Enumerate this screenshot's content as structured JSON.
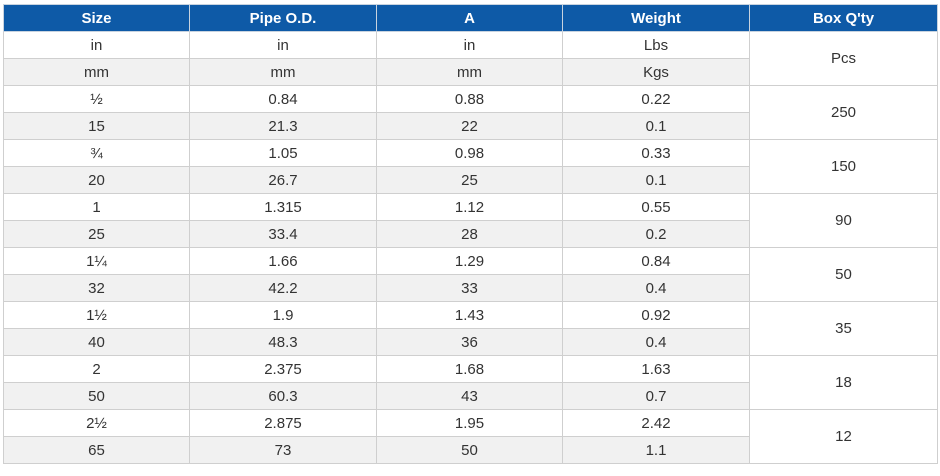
{
  "headers": [
    "Size",
    "Pipe O.D.",
    "A",
    "Weight",
    "Box Q'ty"
  ],
  "unit_rows": [
    [
      "in",
      "in",
      "in",
      "Lbs"
    ],
    [
      "mm",
      "mm",
      "mm",
      "Kgs"
    ]
  ],
  "unit_box": "Pcs",
  "groups": [
    {
      "in": [
        "½",
        "0.84",
        "0.88",
        "0.22"
      ],
      "mm": [
        "15",
        "21.3",
        "22",
        "0.1"
      ],
      "box": "250"
    },
    {
      "in": [
        "¾",
        "1.05",
        "0.98",
        "0.33"
      ],
      "mm": [
        "20",
        "26.7",
        "25",
        "0.1"
      ],
      "box": "150"
    },
    {
      "in": [
        "1",
        "1.315",
        "1.12",
        "0.55"
      ],
      "mm": [
        "25",
        "33.4",
        "28",
        "0.2"
      ],
      "box": "90"
    },
    {
      "in": [
        "1¼",
        "1.66",
        "1.29",
        "0.84"
      ],
      "mm": [
        "32",
        "42.2",
        "33",
        "0.4"
      ],
      "box": "50"
    },
    {
      "in": [
        "1½",
        "1.9",
        "1.43",
        "0.92"
      ],
      "mm": [
        "40",
        "48.3",
        "36",
        "0.4"
      ],
      "box": "35"
    },
    {
      "in": [
        "2",
        "2.375",
        "1.68",
        "1.63"
      ],
      "mm": [
        "50",
        "60.3",
        "43",
        "0.7"
      ],
      "box": "18"
    },
    {
      "in": [
        "2½",
        "2.875",
        "1.95",
        "2.42"
      ],
      "mm": [
        "65",
        "73",
        "50",
        "1.1"
      ],
      "box": "12"
    }
  ]
}
